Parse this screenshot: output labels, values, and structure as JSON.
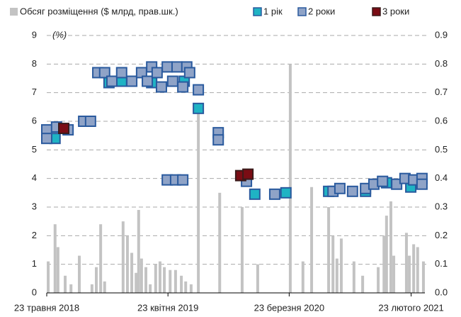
{
  "chart_data": {
    "type": "scatter",
    "y_annotation": "(%)",
    "xlim": [
      "2018-05-23",
      "2021-04-02"
    ],
    "xticks": [
      {
        "value": "2018-05-23",
        "label": "23 травня 2018"
      },
      {
        "value": "2019-04-23",
        "label": "23 квітня 2019"
      },
      {
        "value": "2020-03-23",
        "label": "23 березня 2020"
      },
      {
        "value": "2021-02-23",
        "label": "23 лютого 2021"
      }
    ],
    "ylim": [
      0,
      9
    ],
    "yticks": [
      0,
      1,
      2,
      3,
      4,
      5,
      6,
      7,
      8,
      9
    ],
    "y2lim": [
      0,
      0.9
    ],
    "y2ticks": [
      {
        "value": 0,
        "label": "0.0"
      },
      0.1,
      0.2,
      0.3,
      0.4,
      0.5,
      0.6,
      0.7,
      0.8,
      0.9
    ],
    "grid": true,
    "series": [
      {
        "name": "Обсяг розміщення ($ млрд, прав.шк.)",
        "type": "bar",
        "axis": "y2",
        "color": "#c3c3c3",
        "x": [
          "2018-05-27",
          "2018-06-15",
          "2018-06-23",
          "2018-07-13",
          "2018-07-29",
          "2018-08-21",
          "2018-09-25",
          "2018-10-07",
          "2018-10-19",
          "2018-10-30",
          "2018-12-20",
          "2019-01-01",
          "2019-01-13",
          "2019-01-25",
          "2019-02-01",
          "2019-02-09",
          "2019-02-21",
          "2019-03-05",
          "2019-03-20",
          "2019-04-01",
          "2019-04-13",
          "2019-04-29",
          "2019-05-14",
          "2019-05-30",
          "2019-06-11",
          "2019-06-26",
          "2019-07-16",
          "2019-09-13",
          "2019-11-14",
          "2019-12-27",
          "2020-03-26",
          "2020-04-30",
          "2020-05-24",
          "2020-07-10",
          "2020-07-22",
          "2020-08-02",
          "2020-08-14",
          "2020-09-18",
          "2020-10-12",
          "2020-11-24",
          "2020-12-10",
          "2020-12-17",
          "2020-12-29",
          "2021-01-06",
          "2021-02-10",
          "2021-02-18",
          "2021-03-02",
          "2021-03-13",
          "2021-03-29"
        ],
        "values": [
          0.11,
          0.24,
          0.16,
          0.06,
          0.03,
          0.13,
          0.03,
          0.09,
          0.24,
          0.04,
          0.25,
          0.2,
          0.14,
          0.07,
          0.29,
          0.12,
          0.09,
          0.03,
          0.1,
          0.11,
          0.09,
          0.08,
          0.08,
          0.06,
          0.04,
          0.03,
          0.65,
          0.35,
          0.3,
          0.1,
          0.8,
          0.11,
          0.37,
          0.3,
          0.2,
          0.12,
          0.19,
          0.11,
          0.06,
          0.09,
          0.2,
          0.27,
          0.32,
          0.13,
          0.21,
          0.13,
          0.17,
          0.16,
          0.11
        ]
      },
      {
        "name": "1 рік",
        "color": "#1fb3c4",
        "edge": "#2a5a9e",
        "x": [
          "2018-06-15",
          "2018-11-11",
          "2018-12-16",
          "2019-03-09",
          "2019-06-07",
          "2019-07-16",
          "2019-12-19",
          "2020-03-14",
          "2020-07-10",
          "2020-10-20",
          "2020-12-17",
          "2021-02-22"
        ],
        "values": [
          5.4,
          7.35,
          7.4,
          7.35,
          7.4,
          6.45,
          3.45,
          3.5,
          3.55,
          3.55,
          3.85,
          3.7
        ]
      },
      {
        "name": "2 роки",
        "color": "#8fa3c7",
        "edge": "#2a5a9e",
        "x": [
          "2018-05-23",
          "2018-05-23",
          "2018-06-19",
          "2018-07-21",
          "2018-09-02",
          "2018-09-21",
          "2018-10-11",
          "2018-10-30",
          "2018-11-19",
          "2018-12-16",
          "2019-01-13",
          "2019-02-09",
          "2019-02-25",
          "2019-03-09",
          "2019-03-24",
          "2019-04-05",
          "2019-04-21",
          "2019-05-06",
          "2019-05-18",
          "2019-06-03",
          "2019-06-14",
          "2019-06-22",
          "2019-07-16",
          "2019-04-21",
          "2019-05-14",
          "2019-06-03",
          "2019-09-09",
          "2019-09-09",
          "2019-11-26",
          "2020-02-12",
          "2020-07-22",
          "2020-08-10",
          "2020-09-14",
          "2020-10-20",
          "2020-11-12",
          "2020-12-06",
          "2021-01-14",
          "2021-02-06",
          "2021-03-02",
          "2021-03-25",
          "2021-03-25"
        ],
        "values": [
          5.7,
          5.4,
          5.8,
          5.7,
          6.0,
          6.0,
          7.7,
          7.7,
          7.4,
          7.7,
          7.4,
          7.7,
          7.4,
          7.9,
          7.7,
          7.2,
          7.9,
          7.4,
          7.9,
          7.2,
          7.9,
          7.7,
          7.1,
          3.95,
          3.95,
          3.95,
          5.6,
          5.35,
          3.9,
          3.45,
          3.55,
          3.65,
          3.55,
          3.65,
          3.8,
          3.9,
          3.8,
          4.0,
          3.95,
          4.0,
          3.8
        ]
      },
      {
        "name": "3 роки",
        "color": "#7a0c14",
        "edge": "#3a1a1a",
        "x": [
          "2018-07-09",
          "2019-11-10",
          "2019-11-30"
        ],
        "values": [
          5.75,
          4.1,
          4.15
        ]
      }
    ]
  }
}
